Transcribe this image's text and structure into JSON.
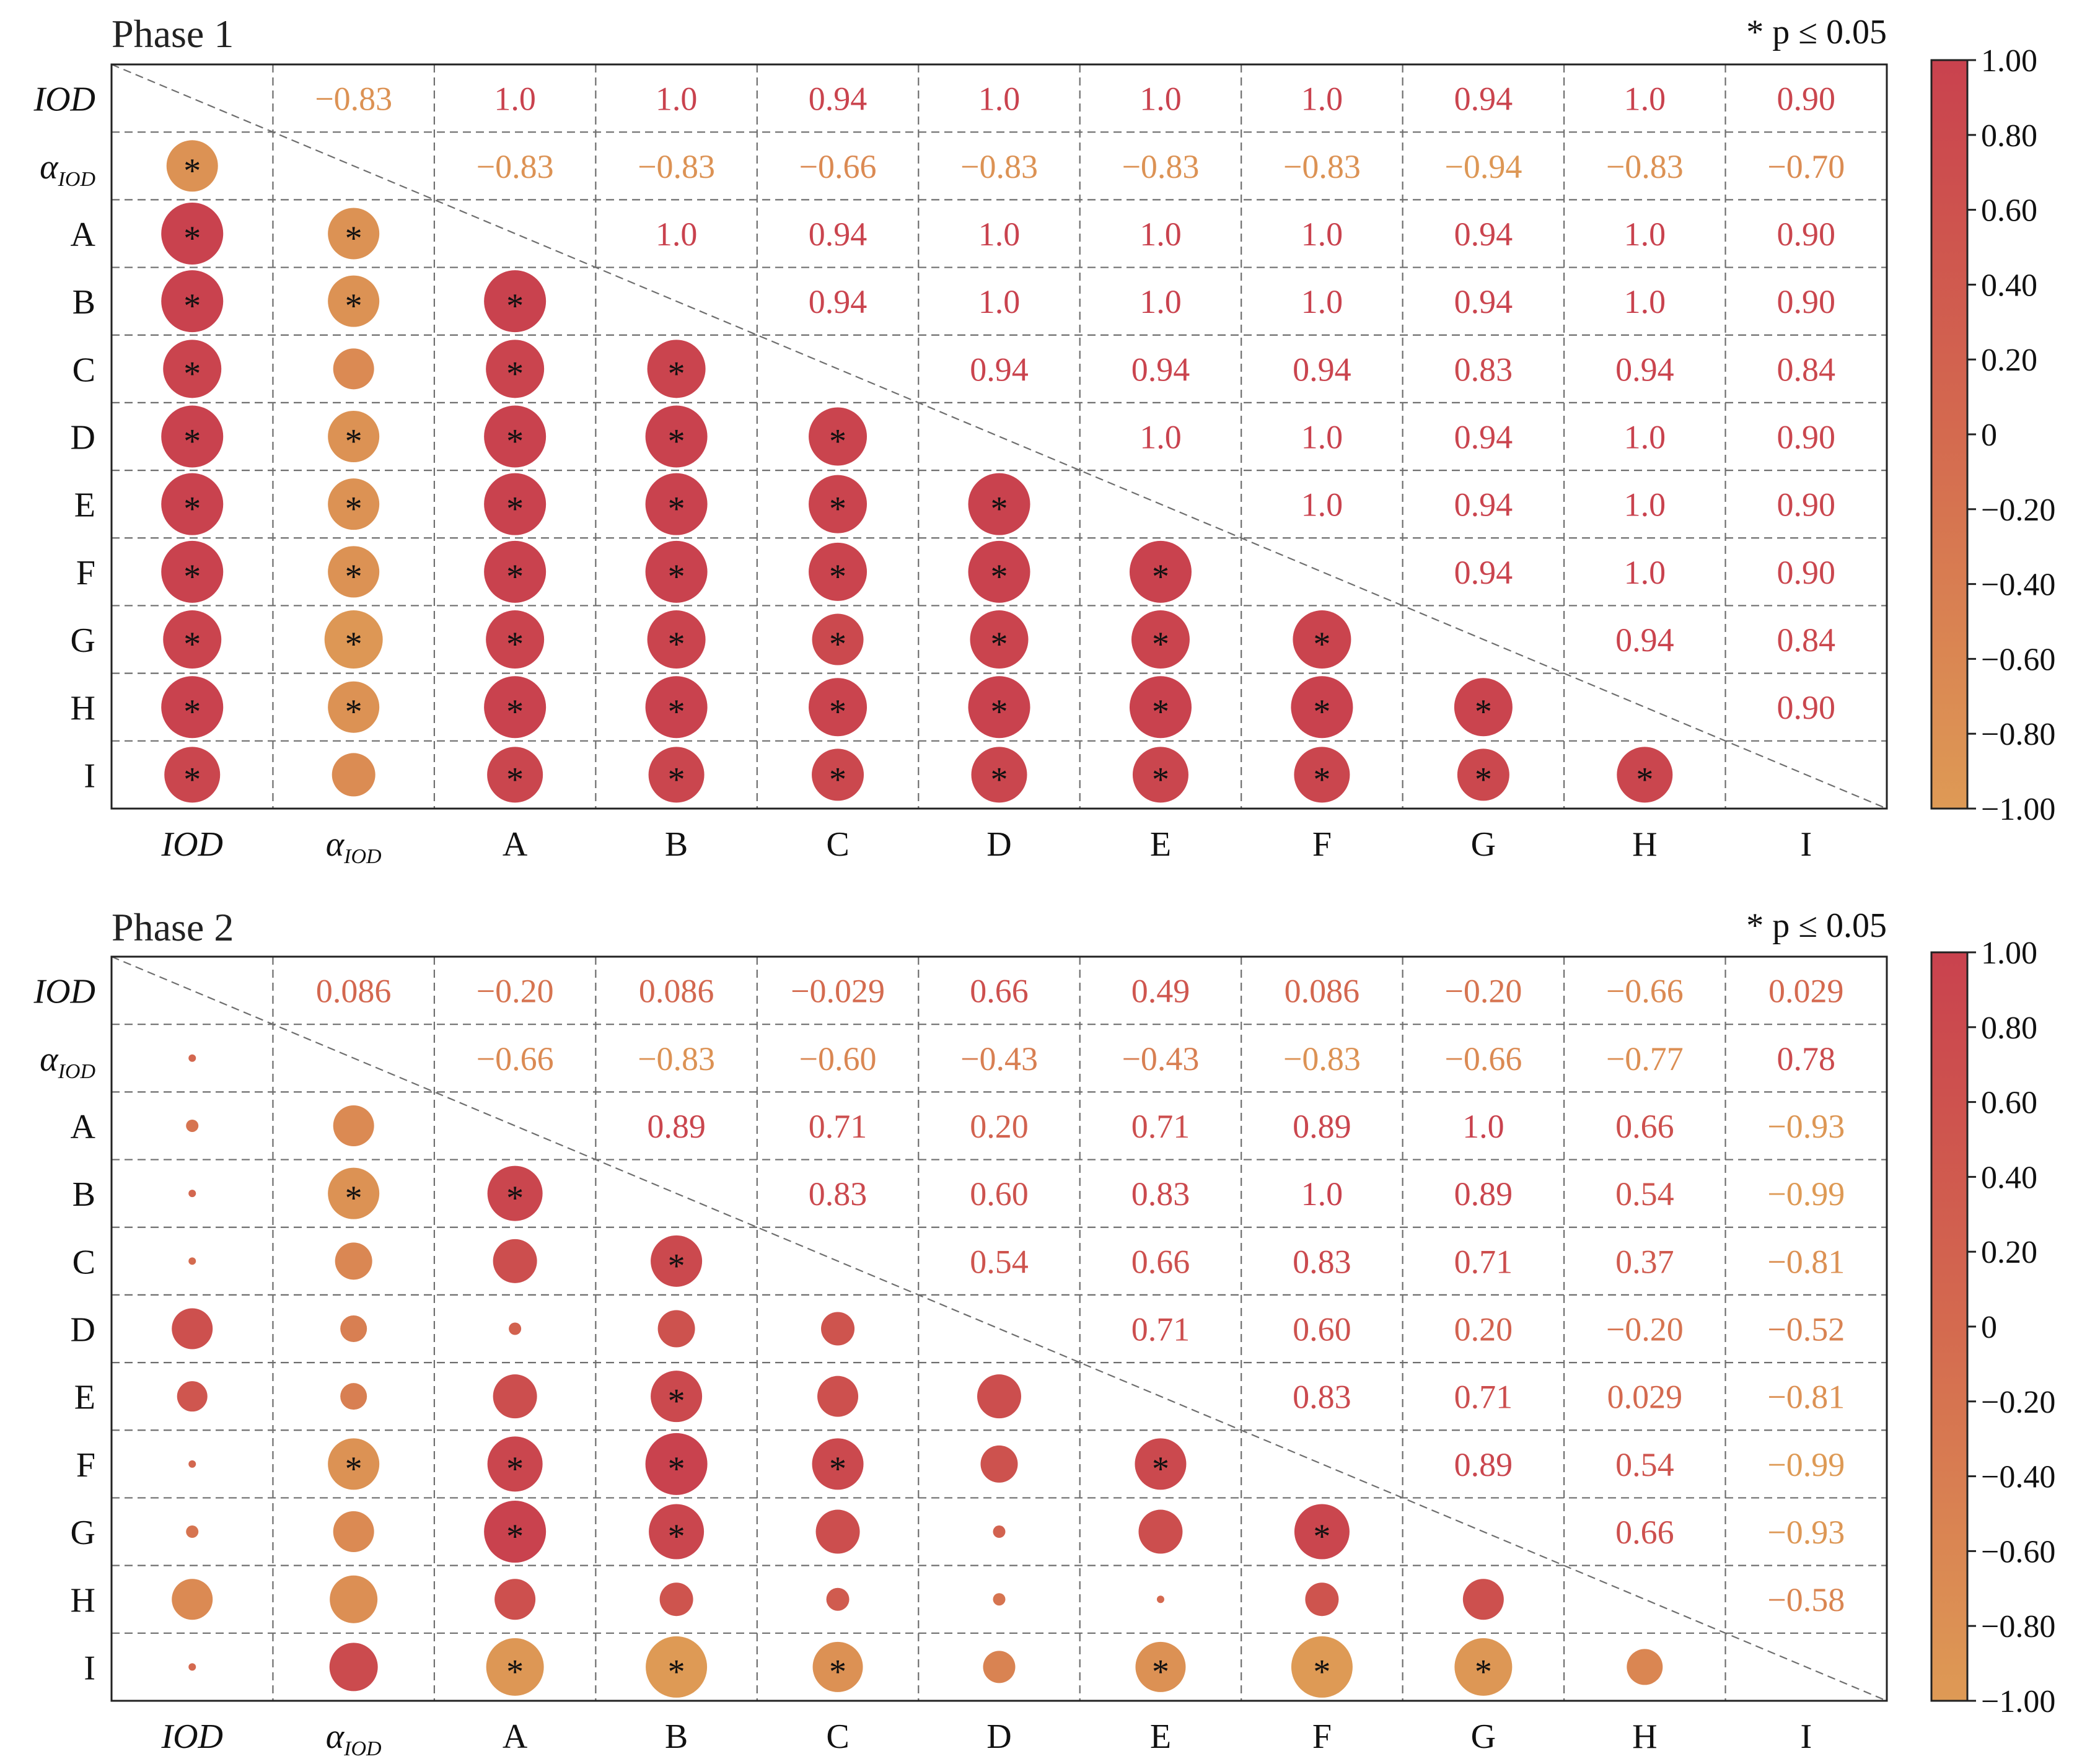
{
  "significance_note": "* p ≤ 0.05",
  "colors": {
    "negative_end": "#de9a55",
    "positive_end": "#c9424e",
    "mid": "#d46a4f"
  },
  "chart_data": [
    {
      "type": "heatmap",
      "subtype": "correlation-matrix",
      "title": "Phase 1",
      "variables": [
        "IOD",
        "α_IOD",
        "A",
        "B",
        "C",
        "D",
        "E",
        "F",
        "G",
        "H",
        "I"
      ],
      "colorbar": {
        "range": [
          -1.0,
          1.0
        ],
        "ticks": [
          "1.00",
          "0.80",
          "0.60",
          "0.40",
          "0.20",
          "0",
          "−0.20",
          "−0.40",
          "−0.60",
          "−0.80",
          "−1.00"
        ]
      },
      "upper_labels": [
        [
          "",
          "−0.83",
          "1.0",
          "1.0",
          "0.94",
          "1.0",
          "1.0",
          "1.0",
          "0.94",
          "1.0",
          "0.90"
        ],
        [
          "",
          "",
          "−0.83",
          "−0.83",
          "−0.66",
          "−0.83",
          "−0.83",
          "−0.83",
          "−0.94",
          "−0.83",
          "−0.70"
        ],
        [
          "",
          "",
          "",
          "1.0",
          "0.94",
          "1.0",
          "1.0",
          "1.0",
          "0.94",
          "1.0",
          "0.90"
        ],
        [
          "",
          "",
          "",
          "",
          "0.94",
          "1.0",
          "1.0",
          "1.0",
          "0.94",
          "1.0",
          "0.90"
        ],
        [
          "",
          "",
          "",
          "",
          "",
          "0.94",
          "0.94",
          "0.94",
          "0.83",
          "0.94",
          "0.84"
        ],
        [
          "",
          "",
          "",
          "",
          "",
          "",
          "1.0",
          "1.0",
          "0.94",
          "1.0",
          "0.90"
        ],
        [
          "",
          "",
          "",
          "",
          "",
          "",
          "",
          "1.0",
          "0.94",
          "1.0",
          "0.90"
        ],
        [
          "",
          "",
          "",
          "",
          "",
          "",
          "",
          "",
          "0.94",
          "1.0",
          "0.90"
        ],
        [
          "",
          "",
          "",
          "",
          "",
          "",
          "",
          "",
          "",
          "0.94",
          "0.84"
        ],
        [
          "",
          "",
          "",
          "",
          "",
          "",
          "",
          "",
          "",
          "",
          "0.90"
        ],
        [
          "",
          "",
          "",
          "",
          "",
          "",
          "",
          "",
          "",
          "",
          ""
        ]
      ],
      "upper": [
        [
          null,
          -0.83,
          1.0,
          1.0,
          0.94,
          1.0,
          1.0,
          1.0,
          0.94,
          1.0,
          0.9
        ],
        [
          null,
          null,
          -0.83,
          -0.83,
          -0.66,
          -0.83,
          -0.83,
          -0.83,
          -0.94,
          -0.83,
          -0.7
        ],
        [
          null,
          null,
          null,
          1.0,
          0.94,
          1.0,
          1.0,
          1.0,
          0.94,
          1.0,
          0.9
        ],
        [
          null,
          null,
          null,
          null,
          0.94,
          1.0,
          1.0,
          1.0,
          0.94,
          1.0,
          0.9
        ],
        [
          null,
          null,
          null,
          null,
          null,
          0.94,
          0.94,
          0.94,
          0.83,
          0.94,
          0.84
        ],
        [
          null,
          null,
          null,
          null,
          null,
          null,
          1.0,
          1.0,
          0.94,
          1.0,
          0.9
        ],
        [
          null,
          null,
          null,
          null,
          null,
          null,
          null,
          1.0,
          0.94,
          1.0,
          0.9
        ],
        [
          null,
          null,
          null,
          null,
          null,
          null,
          null,
          null,
          0.94,
          1.0,
          0.9
        ],
        [
          null,
          null,
          null,
          null,
          null,
          null,
          null,
          null,
          null,
          0.94,
          0.84
        ],
        [
          null,
          null,
          null,
          null,
          null,
          null,
          null,
          null,
          null,
          null,
          0.9
        ],
        [
          null,
          null,
          null,
          null,
          null,
          null,
          null,
          null,
          null,
          null,
          null
        ]
      ],
      "significant": [
        [
          0,
          0,
          0,
          0,
          0,
          0,
          0,
          0,
          0,
          0,
          0
        ],
        [
          1,
          0,
          0,
          0,
          0,
          0,
          0,
          0,
          0,
          0,
          0
        ],
        [
          1,
          1,
          0,
          0,
          0,
          0,
          0,
          0,
          0,
          0,
          0
        ],
        [
          1,
          1,
          1,
          0,
          0,
          0,
          0,
          0,
          0,
          0,
          0
        ],
        [
          1,
          0,
          1,
          1,
          0,
          0,
          0,
          0,
          0,
          0,
          0
        ],
        [
          1,
          1,
          1,
          1,
          1,
          0,
          0,
          0,
          0,
          0,
          0
        ],
        [
          1,
          1,
          1,
          1,
          1,
          1,
          0,
          0,
          0,
          0,
          0
        ],
        [
          1,
          1,
          1,
          1,
          1,
          1,
          1,
          0,
          0,
          0,
          0
        ],
        [
          1,
          1,
          1,
          1,
          1,
          1,
          1,
          1,
          0,
          0,
          0
        ],
        [
          1,
          1,
          1,
          1,
          1,
          1,
          1,
          1,
          1,
          0,
          0
        ],
        [
          1,
          0,
          1,
          1,
          1,
          1,
          1,
          1,
          1,
          1,
          0
        ]
      ]
    },
    {
      "type": "heatmap",
      "subtype": "correlation-matrix",
      "title": "Phase 2",
      "variables": [
        "IOD",
        "α_IOD",
        "A",
        "B",
        "C",
        "D",
        "E",
        "F",
        "G",
        "H",
        "I"
      ],
      "colorbar": {
        "range": [
          -1.0,
          1.0
        ],
        "ticks": [
          "1.00",
          "0.80",
          "0.60",
          "0.40",
          "0.20",
          "0",
          "−0.20",
          "−0.40",
          "−0.60",
          "−0.80",
          "−1.00"
        ]
      },
      "upper_labels": [
        [
          "",
          "0.086",
          "−0.20",
          "0.086",
          "−0.029",
          "0.66",
          "0.49",
          "0.086",
          "−0.20",
          "−0.66",
          "0.029"
        ],
        [
          "",
          "",
          "−0.66",
          "−0.83",
          "−0.60",
          "−0.43",
          "−0.43",
          "−0.83",
          "−0.66",
          "−0.77",
          "0.78"
        ],
        [
          "",
          "",
          "",
          "0.89",
          "0.71",
          "0.20",
          "0.71",
          "0.89",
          "1.0",
          "0.66",
          "−0.93"
        ],
        [
          "",
          "",
          "",
          "",
          "0.83",
          "0.60",
          "0.83",
          "1.0",
          "0.89",
          "0.54",
          "−0.99"
        ],
        [
          "",
          "",
          "",
          "",
          "",
          "0.54",
          "0.66",
          "0.83",
          "0.71",
          "0.37",
          "−0.81"
        ],
        [
          "",
          "",
          "",
          "",
          "",
          "",
          "0.71",
          "0.60",
          "0.20",
          "−0.20",
          "−0.52"
        ],
        [
          "",
          "",
          "",
          "",
          "",
          "",
          "",
          "0.83",
          "0.71",
          "0.029",
          "−0.81"
        ],
        [
          "",
          "",
          "",
          "",
          "",
          "",
          "",
          "",
          "0.89",
          "0.54",
          "−0.99"
        ],
        [
          "",
          "",
          "",
          "",
          "",
          "",
          "",
          "",
          "",
          "0.66",
          "−0.93"
        ],
        [
          "",
          "",
          "",
          "",
          "",
          "",
          "",
          "",
          "",
          "",
          "−0.58"
        ],
        [
          "",
          "",
          "",
          "",
          "",
          "",
          "",
          "",
          "",
          "",
          ""
        ]
      ],
      "upper": [
        [
          null,
          0.086,
          -0.2,
          0.086,
          -0.029,
          0.66,
          0.49,
          0.086,
          -0.2,
          -0.66,
          0.029
        ],
        [
          null,
          null,
          -0.66,
          -0.83,
          -0.6,
          -0.43,
          -0.43,
          -0.83,
          -0.66,
          -0.77,
          0.78
        ],
        [
          null,
          null,
          null,
          0.89,
          0.71,
          0.2,
          0.71,
          0.89,
          1.0,
          0.66,
          -0.93
        ],
        [
          null,
          null,
          null,
          null,
          0.83,
          0.6,
          0.83,
          1.0,
          0.89,
          0.54,
          -0.99
        ],
        [
          null,
          null,
          null,
          null,
          null,
          0.54,
          0.66,
          0.83,
          0.71,
          0.37,
          -0.81
        ],
        [
          null,
          null,
          null,
          null,
          null,
          null,
          0.71,
          0.6,
          0.2,
          -0.2,
          -0.52
        ],
        [
          null,
          null,
          null,
          null,
          null,
          null,
          null,
          0.83,
          0.71,
          0.029,
          -0.81
        ],
        [
          null,
          null,
          null,
          null,
          null,
          null,
          null,
          null,
          0.89,
          0.54,
          -0.99
        ],
        [
          null,
          null,
          null,
          null,
          null,
          null,
          null,
          null,
          null,
          0.66,
          -0.93
        ],
        [
          null,
          null,
          null,
          null,
          null,
          null,
          null,
          null,
          null,
          null,
          -0.58
        ],
        [
          null,
          null,
          null,
          null,
          null,
          null,
          null,
          null,
          null,
          null,
          null
        ]
      ],
      "significant": [
        [
          0,
          0,
          0,
          0,
          0,
          0,
          0,
          0,
          0,
          0,
          0
        ],
        [
          0,
          0,
          0,
          0,
          0,
          0,
          0,
          0,
          0,
          0,
          0
        ],
        [
          0,
          0,
          0,
          0,
          0,
          0,
          0,
          0,
          0,
          0,
          0
        ],
        [
          0,
          1,
          1,
          0,
          0,
          0,
          0,
          0,
          0,
          0,
          0
        ],
        [
          0,
          0,
          0,
          1,
          0,
          0,
          0,
          0,
          0,
          0,
          0
        ],
        [
          0,
          0,
          0,
          0,
          0,
          0,
          0,
          0,
          0,
          0,
          0
        ],
        [
          0,
          0,
          0,
          1,
          0,
          0,
          0,
          0,
          0,
          0,
          0
        ],
        [
          0,
          1,
          1,
          1,
          1,
          0,
          1,
          0,
          0,
          0,
          0
        ],
        [
          0,
          0,
          1,
          1,
          0,
          0,
          0,
          1,
          0,
          0,
          0
        ],
        [
          0,
          0,
          0,
          0,
          0,
          0,
          0,
          0,
          0,
          0,
          0
        ],
        [
          0,
          0,
          1,
          1,
          1,
          0,
          1,
          1,
          1,
          0,
          0
        ]
      ]
    }
  ]
}
